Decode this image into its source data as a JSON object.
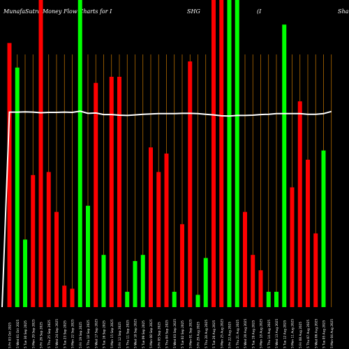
{
  "header": {
    "left": "MunafaSutra  Money Flow  Charts for I",
    "mid": "SHG",
    "paren": "(I",
    "right": "Sha"
  },
  "colors": {
    "up": "#00ff00",
    "down": "#ff0000",
    "grid": "#cc7a00",
    "line": "#ffffff",
    "bg": "#000000"
  },
  "chart_data": {
    "type": "bar",
    "title": "MunafaSutra  Money Flow  Charts for I SHG (I Sha",
    "ylim": [
      0,
      1
    ],
    "grid": "vertical",
    "categories": [
      "Fri 03 Oct 2025",
      "Wed 01 Oct 2025",
      "Tue 30 Sep 2025",
      "Mon 29 Sep 2025",
      "Fri 26 Sep 2025",
      "Thu 25 Sep 2025",
      "Wed 24 Sep 2025",
      "Tue 23 Sep 2025",
      "Mon 22 Sep 2025",
      "Fri 19 Sep 2025",
      "Thu 18 Sep 2025",
      "Wed 17 Sep 2025",
      "Tue 16 Sep 2025",
      "Mon 15 Sep 2025",
      "Fri 12 Sep 2025",
      "Thu 11 Sep 2025",
      "Wed 10 Sep 2025",
      "Tue 09 Sep 2025",
      "Mon 08 Sep 2025",
      "Fri 05 Sep 2025",
      "Thu 04 Sep 2025",
      "Wed 03 Sep 2025",
      "Tue 02 Sep 2025",
      "Mon 01 Sep 2025",
      "Fri 29 Aug 2025",
      "Thu 28 Aug 2025",
      "Tue 26 Aug 2025",
      "Mon 25 Aug 2025",
      "Fri 22 Aug 2025",
      "Thu 21 Aug 2025",
      "Wed 20 Aug 2025",
      "Tue 19 Aug 2025",
      "Mon 18 Aug 2025",
      "Thu 14 Aug 2025",
      "Wed 13 Aug 2025",
      "Tue 12 Aug 2025",
      "Mon 11 Aug 2025",
      "Fri 08 Aug 2025",
      "Thu 07 Aug 2025",
      "Wed 06 Aug 2025",
      "Tue 05 Aug 2025",
      "Mon 04 Aug 2025"
    ],
    "tick_labels": [
      "5 Fri 03 Oct 2025",
      "5 Wed 01 Oct 2025",
      "5 Tue 30 Sep 2025",
      "5 Mon 29 Sep 2025",
      "5 Fri 26 Sep 2025",
      "5 Thu 25 Sep 2025",
      "5 Wed 24 Sep 2025",
      "5 Tue 23 Sep 2025",
      "5 Mon 22 Sep 2025",
      "5 Fri 19 Sep 2025",
      "5 Thu 18 Sep 2025",
      "5 Wed 17 Sep 2025",
      "5 Tue 16 Sep 2025",
      "5 Mon 15 Sep 2025",
      "5 Fri 12 Sep 2025",
      "5 Thu 11 Sep 2025",
      "5 Wed 10 Sep 2025",
      "5 Tue 09 Sep 2025",
      "5 Mon 08 Sep 2025",
      "5 Fri 05 Sep 2025",
      "5 Thu 04 Sep 2025",
      "5 Wed 03 Sep 2025",
      "5 Tue 02 Sep 2025",
      "5 Mon 01 Sep 2025",
      "5 Fri 29 Aug 2025",
      "5 Thu 28 Aug 2025",
      "5 Tue 26 Aug 2025",
      "5 Mon 25 Aug 2025",
      "5 Fri 22 Aug 2025",
      "5 Thu 21 Aug 2025",
      "5 Wed 20 Aug 2025",
      "5 Tue 19 Aug 2025",
      "5 Mon 18 Aug 2025",
      "5 Thu 14 Aug 2025",
      "5 Wed 13 Aug 2025",
      "5 Tue 12 Aug 2025",
      "5 Mon 11 Aug 2025",
      "5 Fri 08 Aug 2025",
      "5 Thu 07 Aug 2025",
      "5 Wed 06 Aug 2025",
      "5 Tue 05 Aug 2025",
      "5 Mon 04 Aug 2025"
    ],
    "values": [
      0.86,
      0.78,
      0.22,
      0.43,
      1.0,
      0.44,
      0.31,
      0.07,
      0.06,
      1.0,
      0.33,
      0.73,
      0.17,
      0.75,
      0.75,
      0.05,
      0.15,
      0.17,
      0.52,
      0.44,
      0.5,
      0.05,
      0.27,
      0.8,
      0.04,
      0.16,
      1.0,
      1.0,
      1.0,
      1.0,
      0.31,
      0.17,
      0.12,
      0.05,
      0.05,
      0.92,
      0.39,
      0.67,
      0.48,
      0.24,
      0.51,
      0.0
    ],
    "directions": [
      "down",
      "up",
      "up",
      "down",
      "down",
      "down",
      "down",
      "down",
      "down",
      "up",
      "up",
      "down",
      "up",
      "down",
      "down",
      "up",
      "up",
      "up",
      "down",
      "down",
      "down",
      "up",
      "down",
      "down",
      "up",
      "up",
      "down",
      "down",
      "up",
      "up",
      "down",
      "down",
      "down",
      "up",
      "up",
      "up",
      "down",
      "down",
      "down",
      "down",
      "up",
      "up"
    ],
    "line_values": [
      0.635,
      0.635,
      0.636,
      0.635,
      0.633,
      0.634,
      0.634,
      0.635,
      0.634,
      0.638,
      0.631,
      0.632,
      0.627,
      0.627,
      0.625,
      0.624,
      0.626,
      0.628,
      0.629,
      0.63,
      0.63,
      0.63,
      0.631,
      0.631,
      0.63,
      0.628,
      0.626,
      0.623,
      0.622,
      0.624,
      0.624,
      0.625,
      0.627,
      0.628,
      0.63,
      0.63,
      0.63,
      0.63,
      0.628,
      0.628,
      0.63,
      0.637
    ]
  }
}
